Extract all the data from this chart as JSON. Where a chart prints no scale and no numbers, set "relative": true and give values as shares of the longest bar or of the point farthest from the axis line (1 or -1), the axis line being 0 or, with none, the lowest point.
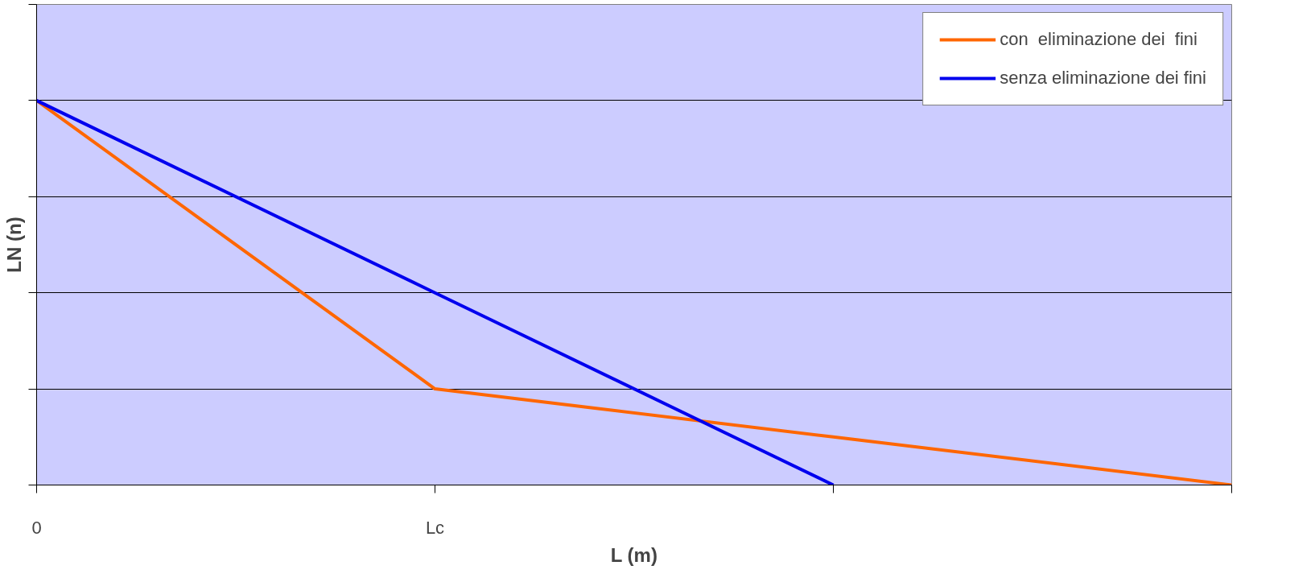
{
  "chart_data": {
    "type": "line",
    "relative": true,
    "xlabel": "L (m)",
    "ylabel": "LN (n)",
    "categories": [
      "0",
      "Lc",
      null,
      null
    ],
    "series": [
      {
        "name": "con  eliminazione dei  fini",
        "color": "#ff6600",
        "values": [
          1,
          0.25,
          0.125,
          0
        ]
      },
      {
        "name": "senza eliminazione dei fini",
        "color": "#0000ee",
        "values": [
          1,
          0.5,
          0,
          null
        ]
      }
    ],
    "grid": "y",
    "legend": "top right",
    "marker": "none",
    "line_style": "solid"
  }
}
